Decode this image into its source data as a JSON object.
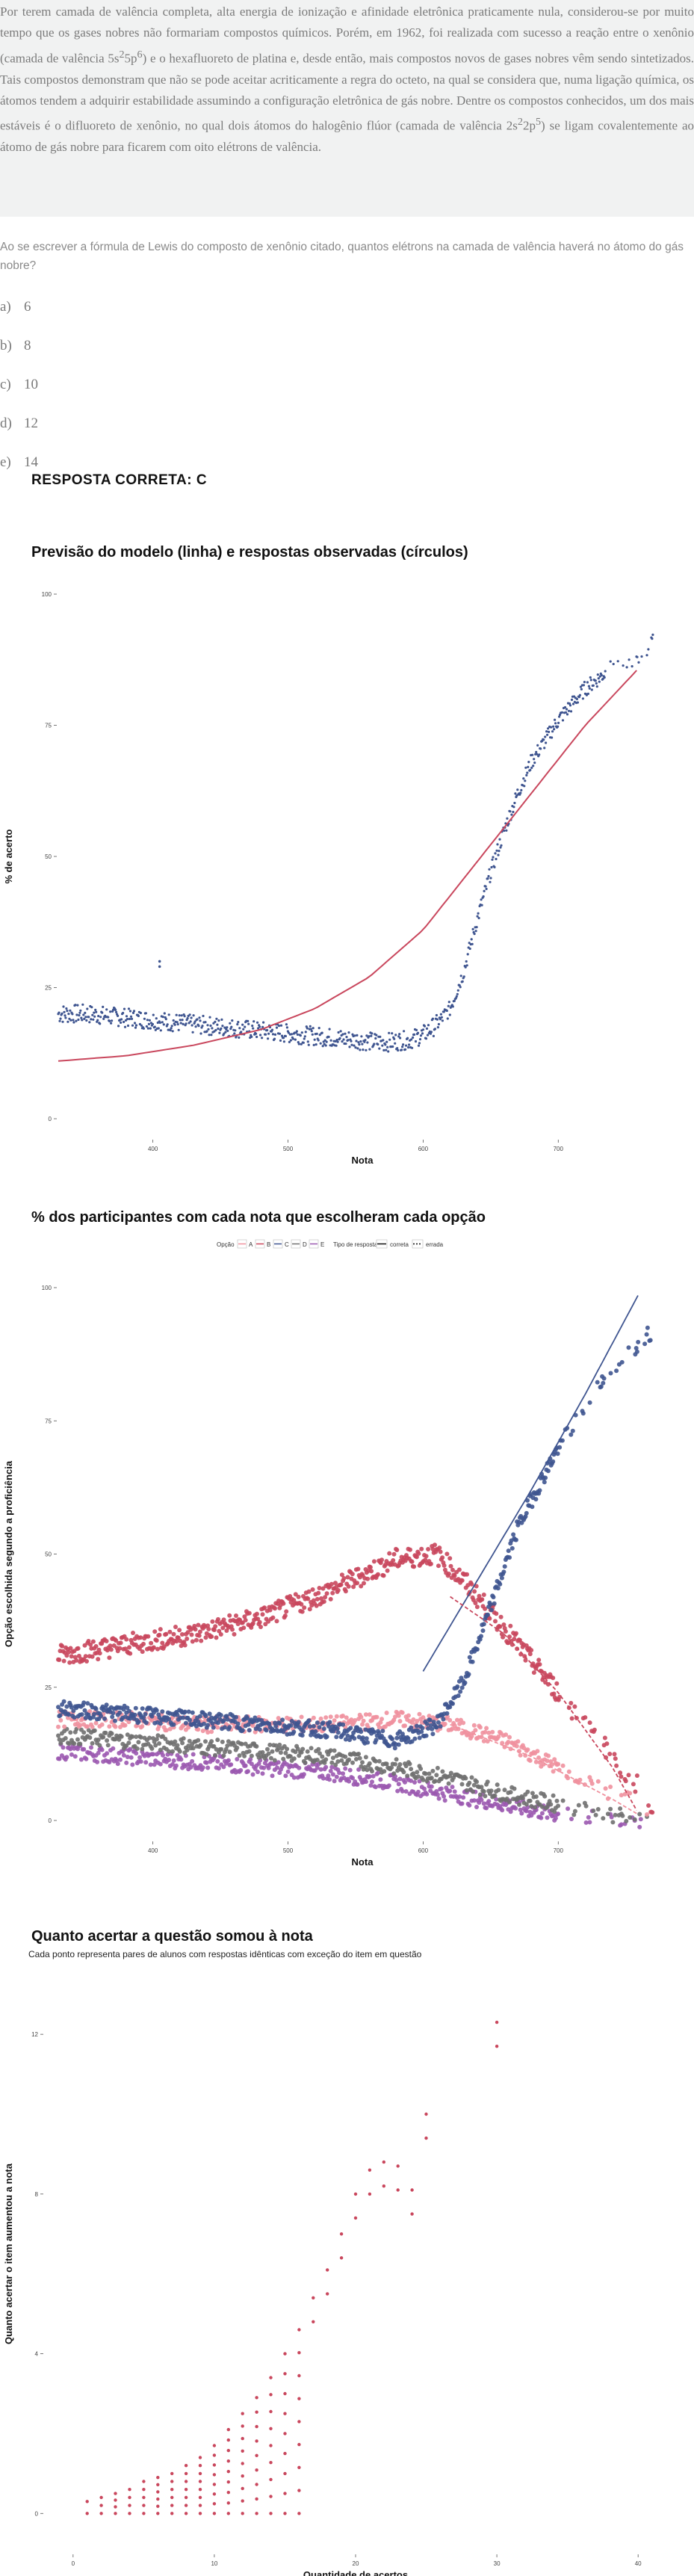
{
  "passage": {
    "part1": "Por terem camada de valência completa, alta energia de ionização e afinidade eletrônica praticamente nula, considerou-se por muito tempo que os gases nobres não formariam compostos químicos. Porém, em 1962, foi realizada com sucesso a reação entre o xenônio (camada de valência 5s",
    "sup1": "2",
    "part2": "5p",
    "sup2": "6",
    "part3": ") e o hexafluoreto de platina e, desde então, mais compostos novos de gases nobres vêm sendo sintetizados. Tais compostos demonstram que não se pode aceitar acriticamente a regra do octeto, na qual se considera que, numa ligação química, os átomos tendem a adquirir estabilidade assumindo a configuração eletrônica de gás nobre. Dentre os compostos conhecidos, um dos mais estáveis é o difluoreto de xenônio, no qual dois átomos do halogênio flúor (camada de valência 2s",
    "sup3": "2",
    "part4": "2p",
    "sup4": "5",
    "part5": ") se ligam covalentemente ao átomo de gás nobre para ficarem com oito elétrons de valência."
  },
  "question": "Ao se escrever a fórmula de Lewis do composto de xenônio citado, quantos elétrons na camada de valência haverá no átomo do gás nobre?",
  "alternatives": [
    {
      "letter": "a)",
      "text": "6"
    },
    {
      "letter": "b)",
      "text": "8"
    },
    {
      "letter": "c)",
      "text": "10"
    },
    {
      "letter": "d)",
      "text": "12"
    },
    {
      "letter": "e)",
      "text": "14"
    }
  ],
  "answer": "RESPOSTA CORRETA: C",
  "colors": {
    "red": "#c9475d",
    "blue": "#3f5590",
    "pink": "#f0919e",
    "gray": "#707070",
    "purple": "#9b59b0"
  },
  "chart_data": [
    {
      "type": "scatter",
      "title": "Previsão do modelo (linha) e respostas observadas (círculos)",
      "xlabel": "Nota",
      "ylabel": "% de acerto",
      "xticks": [
        "400",
        "500",
        "600",
        "700"
      ],
      "yticks": [
        "0",
        "25",
        "50",
        "75",
        "100"
      ],
      "xlim": [
        330,
        780
      ],
      "ylim": [
        0,
        100
      ],
      "series": [
        {
          "kind": "points",
          "x": [
            330,
            350,
            370,
            390,
            410,
            430,
            450,
            470,
            490,
            510,
            530,
            550,
            570,
            590,
            600,
            610,
            620,
            630,
            640,
            650,
            660,
            670,
            680,
            690,
            700,
            710,
            720,
            730,
            740,
            750,
            760,
            770
          ],
          "y": [
            20,
            20,
            19.5,
            19,
            18.5,
            18,
            17.5,
            17,
            16.5,
            16,
            15.5,
            15,
            14.5,
            15,
            16,
            18,
            21,
            28,
            38,
            47,
            55,
            62,
            68,
            72,
            76,
            79,
            82,
            84,
            86,
            86,
            87,
            92
          ]
        },
        {
          "kind": "line",
          "x": [
            330,
            380,
            430,
            480,
            520,
            560,
            600,
            640,
            680,
            720,
            760
          ],
          "y": [
            11,
            12,
            14,
            17,
            21,
            27,
            36,
            49,
            62,
            75,
            86
          ]
        }
      ]
    },
    {
      "type": "scatter",
      "title": "% dos participantes com cada nota que escolheram cada opção",
      "xlabel": "Nota",
      "ylabel": "Opção escolhida segundo a proficiência",
      "legend_option_label": "Opção",
      "legend_options": [
        "A",
        "B",
        "C",
        "D",
        "E"
      ],
      "legend_type_label": "Tipo de resposta",
      "legend_types": [
        "correta",
        "errada"
      ],
      "xticks": [
        "400",
        "500",
        "600",
        "700"
      ],
      "yticks": [
        "0",
        "25",
        "50",
        "75",
        "100"
      ],
      "xlim": [
        330,
        780
      ],
      "ylim": [
        0,
        100
      ],
      "series": [
        {
          "name": "A",
          "color": "pink",
          "x": [
            330,
            380,
            430,
            480,
            530,
            580,
            620,
            660,
            700,
            740,
            770
          ],
          "y": [
            19,
            19,
            18,
            18,
            18,
            19,
            18,
            15,
            10,
            5,
            2
          ]
        },
        {
          "name": "B",
          "color": "red",
          "x": [
            330,
            380,
            430,
            480,
            530,
            580,
            610,
            630,
            660,
            700,
            740,
            770
          ],
          "y": [
            31,
            33,
            35,
            38,
            43,
            49,
            50,
            45,
            36,
            24,
            12,
            3
          ]
        },
        {
          "name": "C",
          "color": "blue",
          "x": [
            330,
            380,
            430,
            480,
            530,
            580,
            610,
            630,
            650,
            670,
            700,
            740,
            770
          ],
          "y": [
            21,
            20,
            19,
            18,
            17,
            15,
            18,
            26,
            40,
            55,
            70,
            85,
            92
          ]
        },
        {
          "name": "D",
          "color": "gray",
          "x": [
            330,
            380,
            430,
            480,
            530,
            580,
            620,
            660,
            700,
            740,
            770
          ],
          "y": [
            16,
            15,
            14,
            13,
            12,
            10,
            8,
            5,
            3,
            1,
            0
          ]
        },
        {
          "name": "E",
          "color": "purple",
          "x": [
            330,
            380,
            430,
            480,
            530,
            580,
            620,
            660,
            700,
            740,
            770
          ],
          "y": [
            13,
            12,
            11,
            10,
            9,
            7,
            5,
            3,
            1,
            0.5,
            0
          ]
        }
      ]
    },
    {
      "type": "scatter",
      "title": "Quanto acertar a questão somou à nota",
      "subtitle": "Cada ponto representa pares de alunos com respostas idênticas com exceção do item em questão",
      "xlabel": "Quantidade de acertos",
      "ylabel": "Quanto acertar o item aumentou a nota",
      "xticks": [
        "0",
        "10",
        "20",
        "30",
        "40"
      ],
      "yticks": [
        "0",
        "4",
        "8",
        "12"
      ],
      "xlim": [
        -2,
        42
      ],
      "ylim": [
        -0.5,
        13.5
      ],
      "x": [
        1,
        2,
        3,
        4,
        5,
        6,
        7,
        8,
        9,
        10,
        11,
        12,
        13,
        14,
        15,
        16,
        17,
        18,
        19,
        20,
        21,
        22,
        23,
        24,
        25,
        30
      ],
      "y": [
        0.3,
        0.4,
        0.5,
        0.6,
        0.8,
        0.9,
        1.0,
        1.2,
        1.4,
        1.7,
        2.1,
        2.5,
        2.9,
        3.4,
        4.0,
        4.6,
        5.4,
        6.1,
        7.0,
        8.0,
        8.6,
        8.8,
        8.7,
        8.1,
        10.0,
        12.3
      ]
    }
  ]
}
